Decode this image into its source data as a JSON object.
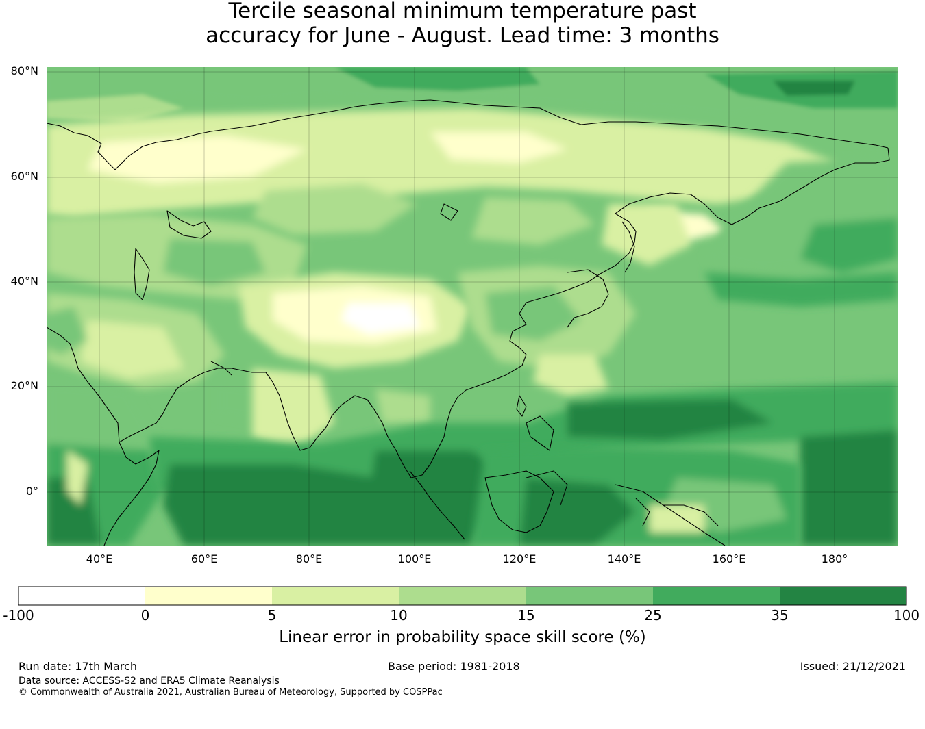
{
  "title": {
    "line1": "Tercile seasonal minimum temperature past",
    "line2": "accuracy for June - August. Lead time: 3 months"
  },
  "map": {
    "lat_labels": [
      "80°N",
      "60°N",
      "40°N",
      "20°N",
      "0°"
    ],
    "lon_labels": [
      "40°E",
      "60°E",
      "80°E",
      "100°E",
      "120°E",
      "140°E",
      "160°E",
      "180°"
    ]
  },
  "colorbar": {
    "ticks": [
      "-100",
      "0",
      "5",
      "10",
      "15",
      "25",
      "35",
      "100"
    ],
    "colors": [
      "#ffffff",
      "#ffffcc",
      "#d9f0a3",
      "#addd8e",
      "#78c679",
      "#41ab5d",
      "#238443"
    ],
    "label": "Linear error in probability space skill score (%)"
  },
  "footer": {
    "run_date": "Run date: 17th March",
    "base_period": "Base period: 1981-2018",
    "issued": "Issued: 21/12/2021",
    "data_source": "Data source: ACCESS-S2 and ERA5 Climate Reanalysis",
    "copyright": "© Commonwealth of Australia 2021, Australian Bureau of Meteorology, Supported by COSPPac"
  }
}
